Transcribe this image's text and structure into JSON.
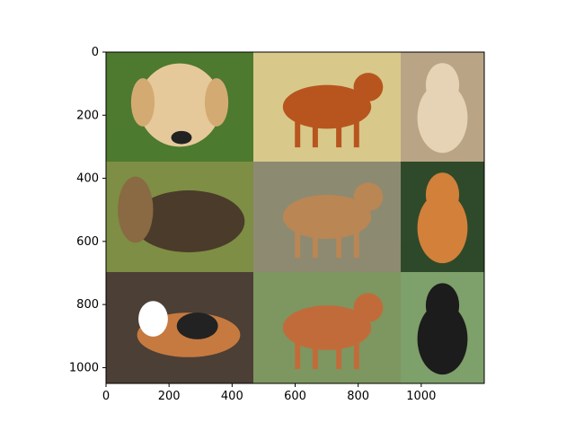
{
  "figure": {
    "background": "#ffffff",
    "axes_color": "#000000",
    "x_ticks": [
      0,
      200,
      400,
      600,
      800,
      1000
    ],
    "y_ticks": [
      0,
      200,
      400,
      600,
      800,
      1000
    ],
    "x_range": [
      0,
      1200
    ],
    "y_range": [
      1050,
      0
    ],
    "layout": "3x3 image grid"
  },
  "tiles": [
    {
      "name": "tile-golden-puppy-lying-on-grass",
      "bg": "#4d7a2e",
      "accent": "#e6c99a",
      "shape": "puppy"
    },
    {
      "name": "tile-golden-retriever-standing",
      "bg": "#d8c98a",
      "accent": "#b8551f",
      "shape": "dog"
    },
    {
      "name": "tile-fluffy-cream-dog",
      "bg": "#b9a586",
      "accent": "#e6d3b6",
      "shape": "sitting"
    },
    {
      "name": "tile-yorkshire-terrier-long-hair",
      "bg": "#7e8e45",
      "accent": "#4b3b2a",
      "shape": "longhair"
    },
    {
      "name": "tile-boxer-standing",
      "bg": "#8d8a72",
      "accent": "#b98654",
      "shape": "dog"
    },
    {
      "name": "tile-pomeranian-in-leaves",
      "bg": "#2f4a2a",
      "accent": "#d2803a",
      "shape": "sitting"
    },
    {
      "name": "tile-beagle-lying-on-dirt",
      "bg": "#4c3f35",
      "accent": "#c67a3f",
      "shape": "lying"
    },
    {
      "name": "tile-basset-hound-walking",
      "bg": "#7e9660",
      "accent": "#c26b3a",
      "shape": "dog"
    },
    {
      "name": "tile-black-newfoundland-sitting",
      "bg": "#7ea06a",
      "accent": "#1c1c1c",
      "shape": "sitting"
    }
  ]
}
